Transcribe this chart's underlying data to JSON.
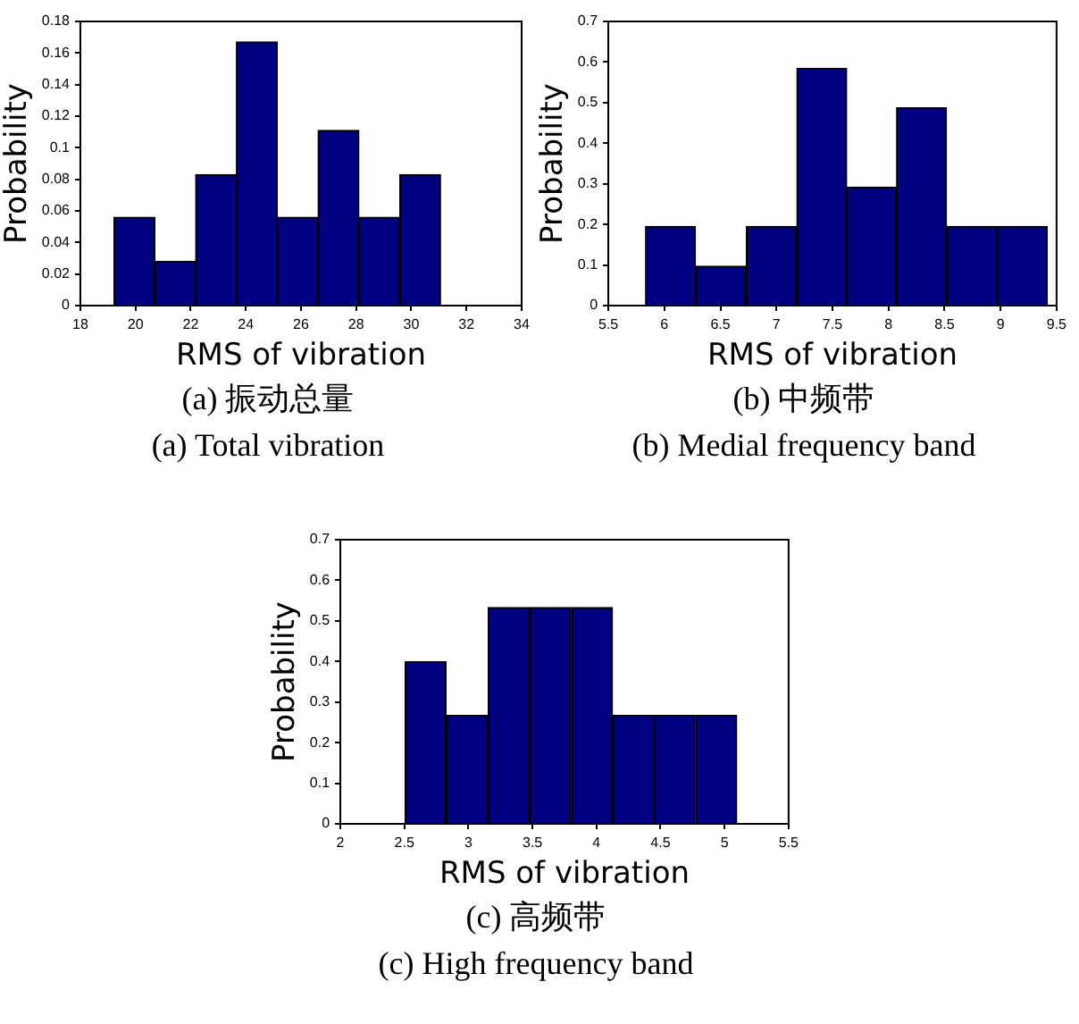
{
  "chart_data": [
    {
      "type": "histogram",
      "title": "(a) 振动总量",
      "subtitle": "(a) Total vibration",
      "xlabel": "RMS of vibration",
      "ylabel": "Probability",
      "color": "#000080",
      "grid": false,
      "bins": [
        19.22,
        20.7,
        22.18,
        23.66,
        25.14,
        26.62,
        28.1,
        29.58,
        31.06
      ],
      "values": [
        0.056,
        0.028,
        0.083,
        0.167,
        0.056,
        0.111,
        0.056,
        0.083
      ],
      "xlim": [
        18,
        34
      ],
      "xticks": [
        18,
        20,
        22,
        24,
        26,
        28,
        30,
        32,
        34
      ],
      "ylim": [
        0,
        0.18
      ],
      "yticks": [
        0,
        0.02,
        0.04,
        0.06,
        0.08,
        0.1,
        0.12,
        0.14,
        0.16,
        0.18
      ]
    },
    {
      "type": "histogram",
      "title": "(b) 中频带",
      "subtitle": "(b) Medial frequency band",
      "xlabel": "RMS of vibration",
      "ylabel": "Probability",
      "color": "#000080",
      "grid": false,
      "bins": [
        5.83,
        6.28,
        6.73,
        7.18,
        7.63,
        8.07,
        8.52,
        8.97,
        9.42
      ],
      "values": [
        0.195,
        0.097,
        0.195,
        0.584,
        0.292,
        0.487,
        0.195,
        0.195
      ],
      "xlim": [
        5.5,
        9.5
      ],
      "xticks": [
        5.5,
        6,
        6.5,
        7,
        7.5,
        8,
        8.5,
        9,
        9.5
      ],
      "ylim": [
        0,
        0.7
      ],
      "yticks": [
        0,
        0.1,
        0.2,
        0.3,
        0.4,
        0.5,
        0.6,
        0.7
      ]
    },
    {
      "type": "histogram",
      "title": "(c) 高频带",
      "subtitle": "(c) High frequency band",
      "xlabel": "RMS of vibration",
      "ylabel": "Probability",
      "color": "#000080",
      "grid": false,
      "bins": [
        2.5,
        2.83,
        3.15,
        3.48,
        3.8,
        4.13,
        4.45,
        4.77,
        5.1
      ],
      "values": [
        0.4,
        0.267,
        0.533,
        0.533,
        0.533,
        0.267,
        0.267,
        0.267
      ],
      "xlim": [
        2,
        5.5
      ],
      "xticks": [
        2,
        2.5,
        3,
        3.5,
        4,
        4.5,
        5,
        5.5
      ],
      "ylim": [
        0,
        0.7
      ],
      "yticks": [
        0,
        0.1,
        0.2,
        0.3,
        0.4,
        0.5,
        0.6,
        0.7
      ]
    }
  ]
}
